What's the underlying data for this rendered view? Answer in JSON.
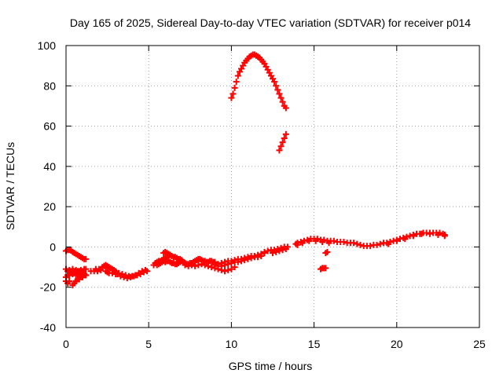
{
  "chart_data": {
    "type": "scatter",
    "title": "Day 165 of 2025, Sidereal Day-to-day VTEC variation (SDTVAR) for receiver p014",
    "xlabel": "GPS time / hours",
    "ylabel": "SDTVAR / TECUs",
    "xlim": [
      0,
      25
    ],
    "ylim": [
      -40,
      100
    ],
    "xticks": [
      0,
      5,
      10,
      15,
      20,
      25
    ],
    "yticks": [
      -40,
      -20,
      0,
      20,
      40,
      60,
      80,
      100
    ],
    "xtick_labels": [
      "0",
      "5",
      "10",
      "15",
      "20",
      "25"
    ],
    "ytick_labels": [
      "-40",
      "-20",
      "0",
      "20",
      "40",
      "60",
      "80",
      "100"
    ],
    "grid": true,
    "marker": "plus",
    "series": [
      {
        "name": "SDTVAR",
        "color": "#ff0000",
        "points": [
          [
            0.0,
            -2
          ],
          [
            0.1,
            -1.5
          ],
          [
            0.2,
            -1.5
          ],
          [
            0.3,
            -1.8
          ],
          [
            0.4,
            -2.5
          ],
          [
            0.5,
            -3
          ],
          [
            0.6,
            -3.5
          ],
          [
            0.7,
            -4
          ],
          [
            0.8,
            -4.5
          ],
          [
            0.9,
            -5
          ],
          [
            1.0,
            -5.5
          ],
          [
            1.1,
            -6
          ],
          [
            1.2,
            -6
          ],
          [
            0.0,
            -11
          ],
          [
            0.1,
            -12
          ],
          [
            0.2,
            -11.5
          ],
          [
            0.3,
            -12
          ],
          [
            0.4,
            -11
          ],
          [
            0.5,
            -12
          ],
          [
            0.6,
            -11.5
          ],
          [
            0.7,
            -12
          ],
          [
            0.8,
            -12
          ],
          [
            0.9,
            -11.5
          ],
          [
            1.0,
            -12
          ],
          [
            1.1,
            -11
          ],
          [
            1.2,
            -11
          ],
          [
            0.0,
            -15
          ],
          [
            0.1,
            -14
          ],
          [
            0.2,
            -14
          ],
          [
            0.3,
            -13
          ],
          [
            0.4,
            -13.5
          ],
          [
            0.5,
            -13
          ],
          [
            0.6,
            -14
          ],
          [
            0.7,
            -13
          ],
          [
            0.8,
            -13.5
          ],
          [
            0.9,
            -14
          ],
          [
            1.0,
            -13
          ],
          [
            1.1,
            -13.5
          ],
          [
            1.2,
            -14
          ],
          [
            0.0,
            -17
          ],
          [
            0.1,
            -18
          ],
          [
            0.2,
            -17
          ],
          [
            0.4,
            -19
          ],
          [
            0.5,
            -18
          ],
          [
            0.6,
            -17
          ],
          [
            0.7,
            -16
          ],
          [
            0.8,
            -16
          ],
          [
            0.9,
            -15
          ],
          [
            1.0,
            -15
          ],
          [
            1.1,
            -14
          ],
          [
            1.2,
            -14
          ],
          [
            1.5,
            -12
          ],
          [
            1.7,
            -12
          ],
          [
            1.8,
            -11
          ],
          [
            1.9,
            -12
          ],
          [
            2.0,
            -11
          ],
          [
            2.1,
            -11.5
          ],
          [
            2.2,
            -10
          ],
          [
            2.3,
            -9.5
          ],
          [
            2.4,
            -9
          ],
          [
            2.5,
            -9.5
          ],
          [
            2.6,
            -10
          ],
          [
            2.7,
            -10.5
          ],
          [
            2.8,
            -11
          ],
          [
            2.9,
            -11.5
          ],
          [
            3.0,
            -12
          ],
          [
            2.4,
            -12
          ],
          [
            2.5,
            -12.5
          ],
          [
            2.6,
            -13
          ],
          [
            2.8,
            -13
          ],
          [
            3.0,
            -13.5
          ],
          [
            3.2,
            -13
          ],
          [
            3.4,
            -13.5
          ],
          [
            3.6,
            -14
          ],
          [
            3.8,
            -14.5
          ],
          [
            4.0,
            -14.5
          ],
          [
            4.2,
            -14
          ],
          [
            4.4,
            -13
          ],
          [
            4.6,
            -12
          ],
          [
            4.8,
            -11.5
          ],
          [
            3.1,
            -13.5
          ],
          [
            3.3,
            -14.5
          ],
          [
            3.5,
            -15
          ],
          [
            3.7,
            -15.5
          ],
          [
            3.9,
            -15
          ],
          [
            4.1,
            -14.5
          ],
          [
            4.3,
            -14
          ],
          [
            4.5,
            -13.5
          ],
          [
            4.7,
            -12.5
          ],
          [
            4.9,
            -12
          ],
          [
            5.3,
            -9
          ],
          [
            5.4,
            -8
          ],
          [
            5.5,
            -7.5
          ],
          [
            5.6,
            -7
          ],
          [
            5.7,
            -7
          ],
          [
            5.8,
            -6.5
          ],
          [
            5.9,
            -6
          ],
          [
            6.0,
            -5.5
          ],
          [
            6.1,
            -5
          ],
          [
            6.2,
            -4
          ],
          [
            6.3,
            -4
          ],
          [
            6.4,
            -4.5
          ],
          [
            6.5,
            -5
          ],
          [
            6.6,
            -5
          ],
          [
            6.7,
            -5.5
          ],
          [
            6.8,
            -6
          ],
          [
            6.9,
            -6
          ],
          [
            7.0,
            -6.5
          ],
          [
            5.5,
            -9
          ],
          [
            5.6,
            -8.5
          ],
          [
            5.7,
            -8
          ],
          [
            5.8,
            -7.5
          ],
          [
            5.9,
            -7
          ],
          [
            6.0,
            -7.5
          ],
          [
            6.1,
            -7
          ],
          [
            6.2,
            -7
          ],
          [
            6.3,
            -7.5
          ],
          [
            6.4,
            -8
          ],
          [
            6.5,
            -8
          ],
          [
            6.6,
            -8.5
          ],
          [
            6.7,
            -8.5
          ],
          [
            6.8,
            -8
          ],
          [
            6.9,
            -7.5
          ],
          [
            5.9,
            -3
          ],
          [
            6.0,
            -2.5
          ],
          [
            6.1,
            -3
          ],
          [
            6.2,
            -3.5
          ],
          [
            6.3,
            -4
          ],
          [
            7.0,
            -7
          ],
          [
            7.1,
            -7.5
          ],
          [
            7.2,
            -8
          ],
          [
            7.3,
            -8.5
          ],
          [
            7.4,
            -8.5
          ],
          [
            7.5,
            -8
          ],
          [
            7.6,
            -8
          ],
          [
            7.7,
            -7.5
          ],
          [
            7.8,
            -7
          ],
          [
            7.9,
            -6.5
          ],
          [
            8.0,
            -6
          ],
          [
            8.1,
            -6
          ],
          [
            8.2,
            -6.5
          ],
          [
            8.3,
            -7
          ],
          [
            8.4,
            -7
          ],
          [
            8.5,
            -7.5
          ],
          [
            8.6,
            -7.5
          ],
          [
            8.7,
            -7
          ],
          [
            8.8,
            -7
          ],
          [
            8.9,
            -7.5
          ],
          [
            9.0,
            -7.5
          ],
          [
            7.2,
            -9
          ],
          [
            7.4,
            -9.5
          ],
          [
            7.6,
            -9
          ],
          [
            7.8,
            -9.5
          ],
          [
            8.0,
            -9
          ],
          [
            8.2,
            -8.5
          ],
          [
            8.4,
            -9
          ],
          [
            8.6,
            -9.5
          ],
          [
            8.8,
            -10
          ],
          [
            9.0,
            -10.5
          ],
          [
            9.2,
            -11
          ],
          [
            9.4,
            -11.5
          ],
          [
            9.6,
            -12
          ],
          [
            9.8,
            -11.5
          ],
          [
            10.0,
            -11
          ],
          [
            10.2,
            -10
          ],
          [
            9.0,
            -8
          ],
          [
            9.2,
            -8.5
          ],
          [
            9.4,
            -8
          ],
          [
            9.6,
            -7.5
          ],
          [
            9.8,
            -7
          ],
          [
            10.0,
            -7
          ],
          [
            10.2,
            -6.5
          ],
          [
            10.4,
            -6
          ],
          [
            10.6,
            -6
          ],
          [
            10.8,
            -5.5
          ],
          [
            11.0,
            -5
          ],
          [
            11.2,
            -4.5
          ],
          [
            11.4,
            -4.5
          ],
          [
            11.6,
            -4
          ],
          [
            11.8,
            -3.5
          ],
          [
            12.0,
            -3
          ],
          [
            9.0,
            -9
          ],
          [
            9.2,
            -9.5
          ],
          [
            9.4,
            -9.5
          ],
          [
            9.6,
            -9
          ],
          [
            9.8,
            -8.5
          ],
          [
            10.0,
            -8
          ],
          [
            10.2,
            -7.5
          ],
          [
            10.4,
            -7.5
          ],
          [
            10.6,
            -7
          ],
          [
            10.8,
            -6.5
          ],
          [
            11.0,
            -6
          ],
          [
            11.2,
            -5.5
          ],
          [
            11.4,
            -5
          ],
          [
            11.6,
            -5
          ],
          [
            11.8,
            -4.5
          ],
          [
            12.0,
            -2.5
          ],
          [
            12.2,
            -2
          ],
          [
            12.4,
            -1.5
          ],
          [
            12.6,
            -1.5
          ],
          [
            12.8,
            -1
          ],
          [
            13.0,
            -0.5
          ],
          [
            13.2,
            0
          ],
          [
            13.4,
            0
          ],
          [
            12.5,
            -3
          ],
          [
            12.7,
            -2.5
          ],
          [
            12.9,
            -2
          ],
          [
            13.1,
            -1.5
          ],
          [
            13.3,
            -1
          ],
          [
            13.9,
            1.5
          ],
          [
            14.0,
            2
          ],
          [
            14.2,
            2.5
          ],
          [
            14.4,
            3
          ],
          [
            14.6,
            3.5
          ],
          [
            14.8,
            4
          ],
          [
            15.0,
            4
          ],
          [
            15.2,
            4
          ],
          [
            15.4,
            3.5
          ],
          [
            15.6,
            3.5
          ],
          [
            15.8,
            3
          ],
          [
            16.0,
            3
          ],
          [
            16.2,
            3
          ],
          [
            16.4,
            2.5
          ],
          [
            16.6,
            2.5
          ],
          [
            16.8,
            2.5
          ],
          [
            17.0,
            2
          ],
          [
            17.2,
            2
          ],
          [
            17.4,
            2
          ],
          [
            17.6,
            1.5
          ],
          [
            17.8,
            1
          ],
          [
            18.0,
            0.5
          ],
          [
            18.2,
            0.5
          ],
          [
            14.0,
            1
          ],
          [
            14.3,
            2
          ],
          [
            14.7,
            3
          ],
          [
            15.1,
            3
          ],
          [
            15.5,
            2.5
          ],
          [
            15.9,
            2
          ],
          [
            15.7,
            -3
          ],
          [
            15.8,
            -2.5
          ],
          [
            15.4,
            -11
          ],
          [
            15.5,
            -10.5
          ],
          [
            15.6,
            -10.5
          ],
          [
            15.7,
            -10.5
          ],
          [
            18.4,
            0.5
          ],
          [
            18.6,
            1
          ],
          [
            18.8,
            1
          ],
          [
            19.0,
            1.5
          ],
          [
            19.2,
            2
          ],
          [
            19.4,
            2
          ],
          [
            19.6,
            2.5
          ],
          [
            19.8,
            3
          ],
          [
            20.0,
            3.5
          ],
          [
            20.2,
            4
          ],
          [
            20.4,
            4.5
          ],
          [
            20.6,
            5
          ],
          [
            20.8,
            5.5
          ],
          [
            21.0,
            6
          ],
          [
            21.2,
            6.5
          ],
          [
            21.4,
            6.5
          ],
          [
            21.6,
            7
          ],
          [
            21.8,
            7
          ],
          [
            22.0,
            7
          ],
          [
            22.2,
            7
          ],
          [
            22.4,
            7
          ],
          [
            22.6,
            7
          ],
          [
            22.8,
            6.5
          ],
          [
            22.9,
            6
          ],
          [
            19.5,
            1.5
          ],
          [
            20.0,
            3
          ],
          [
            20.5,
            4
          ],
          [
            21.0,
            5.5
          ],
          [
            21.5,
            6.5
          ],
          [
            22.0,
            6.5
          ],
          [
            22.5,
            6
          ],
          [
            22.9,
            5.5
          ],
          [
            10.0,
            74
          ],
          [
            10.1,
            76
          ],
          [
            10.2,
            79
          ],
          [
            10.3,
            82
          ],
          [
            10.4,
            85
          ],
          [
            10.5,
            87
          ],
          [
            10.6,
            88.5
          ],
          [
            10.7,
            90
          ],
          [
            10.8,
            91.5
          ],
          [
            10.9,
            92.5
          ],
          [
            11.0,
            93.5
          ],
          [
            11.1,
            94.5
          ],
          [
            11.2,
            95
          ],
          [
            11.3,
            95.5
          ],
          [
            11.4,
            95.5
          ],
          [
            11.5,
            95
          ],
          [
            11.6,
            94.5
          ],
          [
            11.7,
            94
          ],
          [
            11.8,
            93
          ],
          [
            11.9,
            92
          ],
          [
            12.0,
            91
          ],
          [
            12.1,
            89.5
          ],
          [
            12.2,
            88
          ],
          [
            12.3,
            86.5
          ],
          [
            12.4,
            85
          ],
          [
            12.5,
            83.5
          ],
          [
            12.6,
            82
          ],
          [
            12.7,
            80
          ],
          [
            12.8,
            78
          ],
          [
            12.9,
            76
          ],
          [
            13.0,
            74
          ],
          [
            13.1,
            72
          ],
          [
            13.2,
            70
          ],
          [
            13.3,
            69
          ],
          [
            12.9,
            48
          ],
          [
            13.0,
            50
          ],
          [
            13.1,
            52
          ],
          [
            13.2,
            54
          ],
          [
            13.3,
            56
          ]
        ]
      }
    ]
  }
}
